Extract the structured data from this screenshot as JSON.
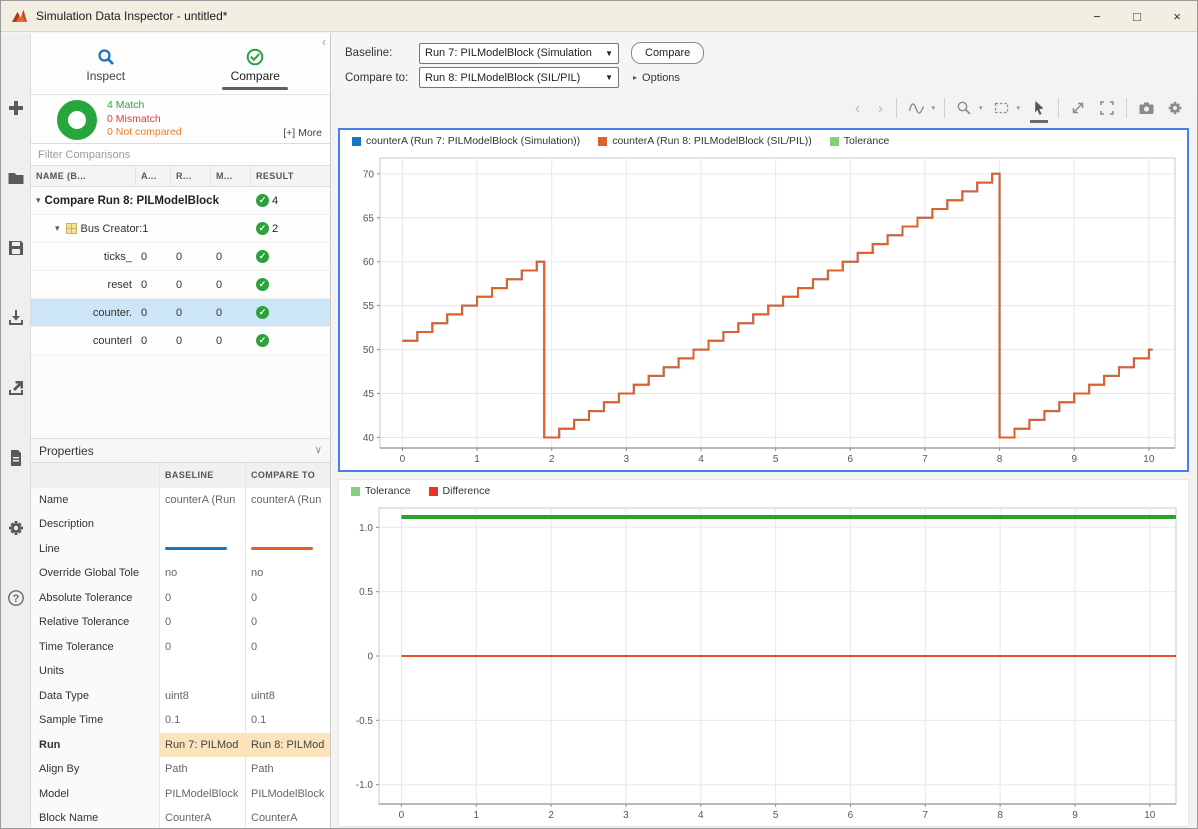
{
  "window": {
    "title": "Simulation Data Inspector - untitled*",
    "controls": {
      "minimize": "−",
      "maximize": "□",
      "close": "×"
    }
  },
  "panel": {
    "collapse_icon": "‹",
    "tabs": {
      "inspect": "Inspect",
      "compare": "Compare"
    },
    "summary": {
      "match": "4 Match",
      "mismatch": "0 Mismatch",
      "not_compared": "0 Not compared",
      "more": "[+] More"
    },
    "filter_placeholder": "Filter Comparisons",
    "table": {
      "headers": [
        "NAME (B...",
        "A...",
        "R...",
        "M...",
        "RESULT"
      ],
      "rows": [
        {
          "kind": "group",
          "label": "Compare Run 8: PILModelBlock",
          "count": "4"
        },
        {
          "kind": "bus",
          "label": "Bus Creator:1",
          "count": "2"
        },
        {
          "kind": "signal",
          "label": "ticks_",
          "abs": "0",
          "rel": "0",
          "time": "0",
          "selected": false
        },
        {
          "kind": "signal",
          "label": "reset",
          "abs": "0",
          "rel": "0",
          "time": "0",
          "selected": false
        },
        {
          "kind": "signal",
          "label": "counter.",
          "abs": "0",
          "rel": "0",
          "time": "0",
          "selected": true
        },
        {
          "kind": "signal",
          "label": "counterl",
          "abs": "0",
          "rel": "0",
          "time": "0",
          "selected": false
        }
      ]
    },
    "properties": {
      "title": "Properties",
      "chevron": "∨",
      "col_baseline": "BASELINE",
      "col_compare": "COMPARE TO",
      "line_colors": {
        "baseline": "#1a74c4",
        "compare": "#e1602a"
      },
      "rows": [
        {
          "label": "Name",
          "baseline": "counterA (Run",
          "compare": "counterA (Run"
        },
        {
          "label": "Description",
          "baseline": "",
          "compare": ""
        },
        {
          "label": "Line",
          "type": "line"
        },
        {
          "label": "Override Global Tole",
          "baseline": "no",
          "compare": "no"
        },
        {
          "label": "Absolute Tolerance",
          "baseline": "0",
          "compare": "0"
        },
        {
          "label": "Relative Tolerance",
          "baseline": "0",
          "compare": "0"
        },
        {
          "label": "Time Tolerance",
          "baseline": "0",
          "compare": "0"
        },
        {
          "label": "Units",
          "baseline": "",
          "compare": ""
        },
        {
          "label": "Data Type",
          "baseline": "uint8",
          "compare": "uint8"
        },
        {
          "label": "Sample Time",
          "baseline": "0.1",
          "compare": "0.1"
        },
        {
          "label": "Run",
          "baseline": "Run 7: PILMod",
          "compare": "Run 8: PILMod",
          "highlight": true
        },
        {
          "label": "Align By",
          "baseline": "Path",
          "compare": "Path"
        },
        {
          "label": "Model",
          "baseline": "PILModelBlock",
          "compare": "PILModelBlock"
        },
        {
          "label": "Block Name",
          "baseline": "CounterA",
          "compare": "CounterA"
        }
      ]
    }
  },
  "compare_bar": {
    "baseline_label": "Baseline:",
    "baseline_value": "Run 7: PILModelBlock (Simulation",
    "compareto_label": "Compare to:",
    "compareto_value": "Run 8: PILModelBlock (SIL/PIL)",
    "compare_button": "Compare",
    "options_label": "Options",
    "options_tri": "▸",
    "dd_arrow": "▼"
  },
  "chart_data": [
    {
      "name": "signals-chart",
      "type": "line",
      "title": "",
      "xlabel": "",
      "ylabel": "",
      "grid": true,
      "legend_position": "top-left",
      "legend": [
        {
          "label": "counterA (Run 7: PILModelBlock (Simulation))",
          "color": "#1a74c4"
        },
        {
          "label": "counterA (Run 8: PILModelBlock (SIL/PIL))",
          "color": "#e1602a"
        },
        {
          "label": "Tolerance",
          "color": "#85cf82"
        }
      ],
      "xlim": [
        -0.3,
        10.35
      ],
      "ylim": [
        38.8,
        71.8
      ],
      "xticks": [
        0,
        1,
        2,
        3,
        4,
        5,
        6,
        7,
        8,
        9,
        10
      ],
      "xtick_labels": [
        "0",
        "1",
        "2",
        "3",
        "4",
        "5",
        "6",
        "7",
        "8",
        "9",
        "10"
      ],
      "yticks": [
        40,
        45,
        50,
        55,
        60,
        65,
        70
      ],
      "ytick_labels": [
        "40",
        "45",
        "50",
        "55",
        "60",
        "65",
        "70"
      ],
      "series": [
        {
          "name": "counterA Run 7",
          "color": "#1a74c4",
          "type": "step",
          "step": 0.2,
          "segments": [
            {
              "x_start": 0,
              "y_start": 51,
              "y_max": 60,
              "x_end": 1.9
            },
            {
              "x_start": 1.9,
              "y_start": 40,
              "y_max": 70,
              "x_end": 8.0
            },
            {
              "x_start": 8.0,
              "y_start": 40,
              "y_max": 50,
              "x_end": 10.05
            }
          ]
        },
        {
          "name": "counterA Run 8",
          "color": "#e1602a",
          "type": "step",
          "step": 0.2,
          "segments": [
            {
              "x_start": 0,
              "y_start": 51,
              "y_max": 60,
              "x_end": 1.9
            },
            {
              "x_start": 1.9,
              "y_start": 40,
              "y_max": 70,
              "x_end": 8.0
            },
            {
              "x_start": 8.0,
              "y_start": 40,
              "y_max": 50,
              "x_end": 10.05
            }
          ]
        }
      ]
    },
    {
      "name": "difference-chart",
      "type": "line",
      "title": "",
      "xlabel": "",
      "ylabel": "",
      "grid": true,
      "legend_position": "top-left",
      "legend": [
        {
          "label": "Tolerance",
          "color": "#85cf82"
        },
        {
          "label": "Difference",
          "color": "#ee3124"
        }
      ],
      "xlim": [
        -0.3,
        10.35
      ],
      "ylim": [
        -1.15,
        1.15
      ],
      "xticks": [
        0,
        1,
        2,
        3,
        4,
        5,
        6,
        7,
        8,
        9,
        10
      ],
      "xtick_labels": [
        "0",
        "1",
        "2",
        "3",
        "4",
        "5",
        "6",
        "7",
        "8",
        "9",
        "10"
      ],
      "yticks": [
        -1.0,
        -0.5,
        0,
        0.5,
        1.0
      ],
      "ytick_labels": [
        "-1.0",
        "-0.5",
        "0",
        "0.5",
        "1.0"
      ],
      "series": [
        {
          "name": "Tolerance",
          "type": "hline",
          "y": 1.08,
          "x0": 0,
          "x1": 10.35,
          "color": "#2aa32a",
          "width": 4
        },
        {
          "name": "Difference",
          "type": "hline",
          "y": 0,
          "x0": 0,
          "x1": 10.35,
          "color": "#e8502a",
          "width": 2
        }
      ]
    }
  ]
}
